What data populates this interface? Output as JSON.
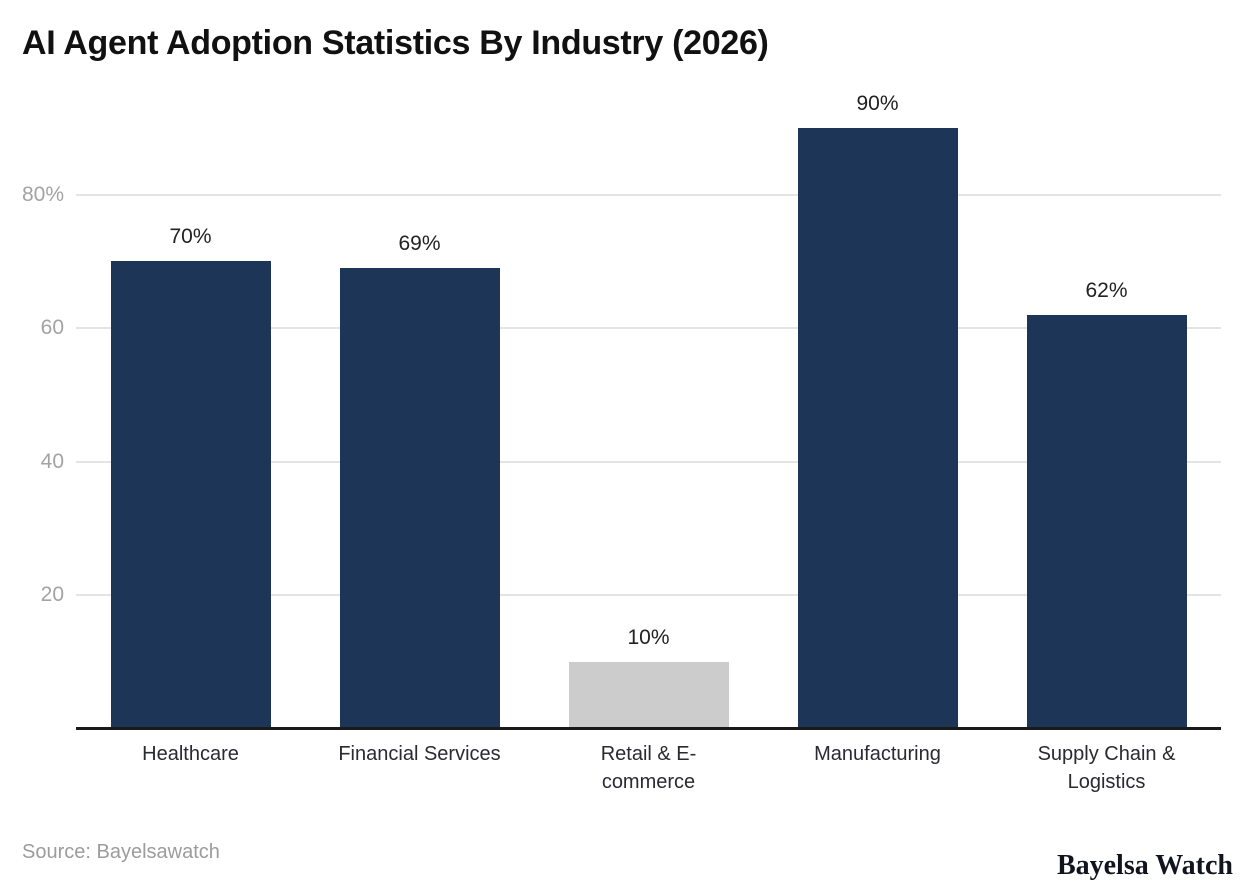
{
  "page": {
    "title": "AI Agent Adoption Statistics By Industry (2026)",
    "source_note": "Source: Bayelsawatch",
    "brand_wordmark": "Bayelsa Watch"
  },
  "chart_data": {
    "type": "bar",
    "title": "AI Agent Adoption Statistics By Industry (2026)",
    "categories": [
      "Healthcare",
      "Financial Services",
      "Retail & E-commerce",
      "Manufacturing",
      "Supply Chain & Logistics"
    ],
    "category_display": [
      "Healthcare",
      "Financial Services",
      "Retail & E-\ncommerce",
      "Manufacturing",
      "Supply Chain &\nLogistics"
    ],
    "values": [
      70,
      69,
      10,
      90,
      62
    ],
    "value_labels": [
      "70%",
      "69%",
      "10%",
      "90%",
      "62%"
    ],
    "bar_colors": [
      "#1d3557",
      "#1d3557",
      "#cccccc",
      "#1d3557",
      "#1d3557"
    ],
    "unit": "%",
    "xlabel": "",
    "ylabel": "",
    "ylim": [
      0,
      100
    ],
    "yticks": [
      20,
      40,
      60,
      80
    ],
    "ytick_labels": [
      "20",
      "40",
      "60",
      "80%"
    ],
    "grid": "horizontal",
    "legend": "none",
    "colors": {
      "bar_primary": "#1d3557",
      "bar_muted": "#cccccc",
      "grid_line": "#e4e4e4",
      "axis_line": "#1a1a1a",
      "tick_label": "#a3a3a3",
      "value_label": "#222222",
      "category_label": "#2a2a31",
      "title_text": "#111111",
      "source_text": "#9c9c9c",
      "brand_text": "#10141f",
      "background": "#ffffff"
    }
  }
}
